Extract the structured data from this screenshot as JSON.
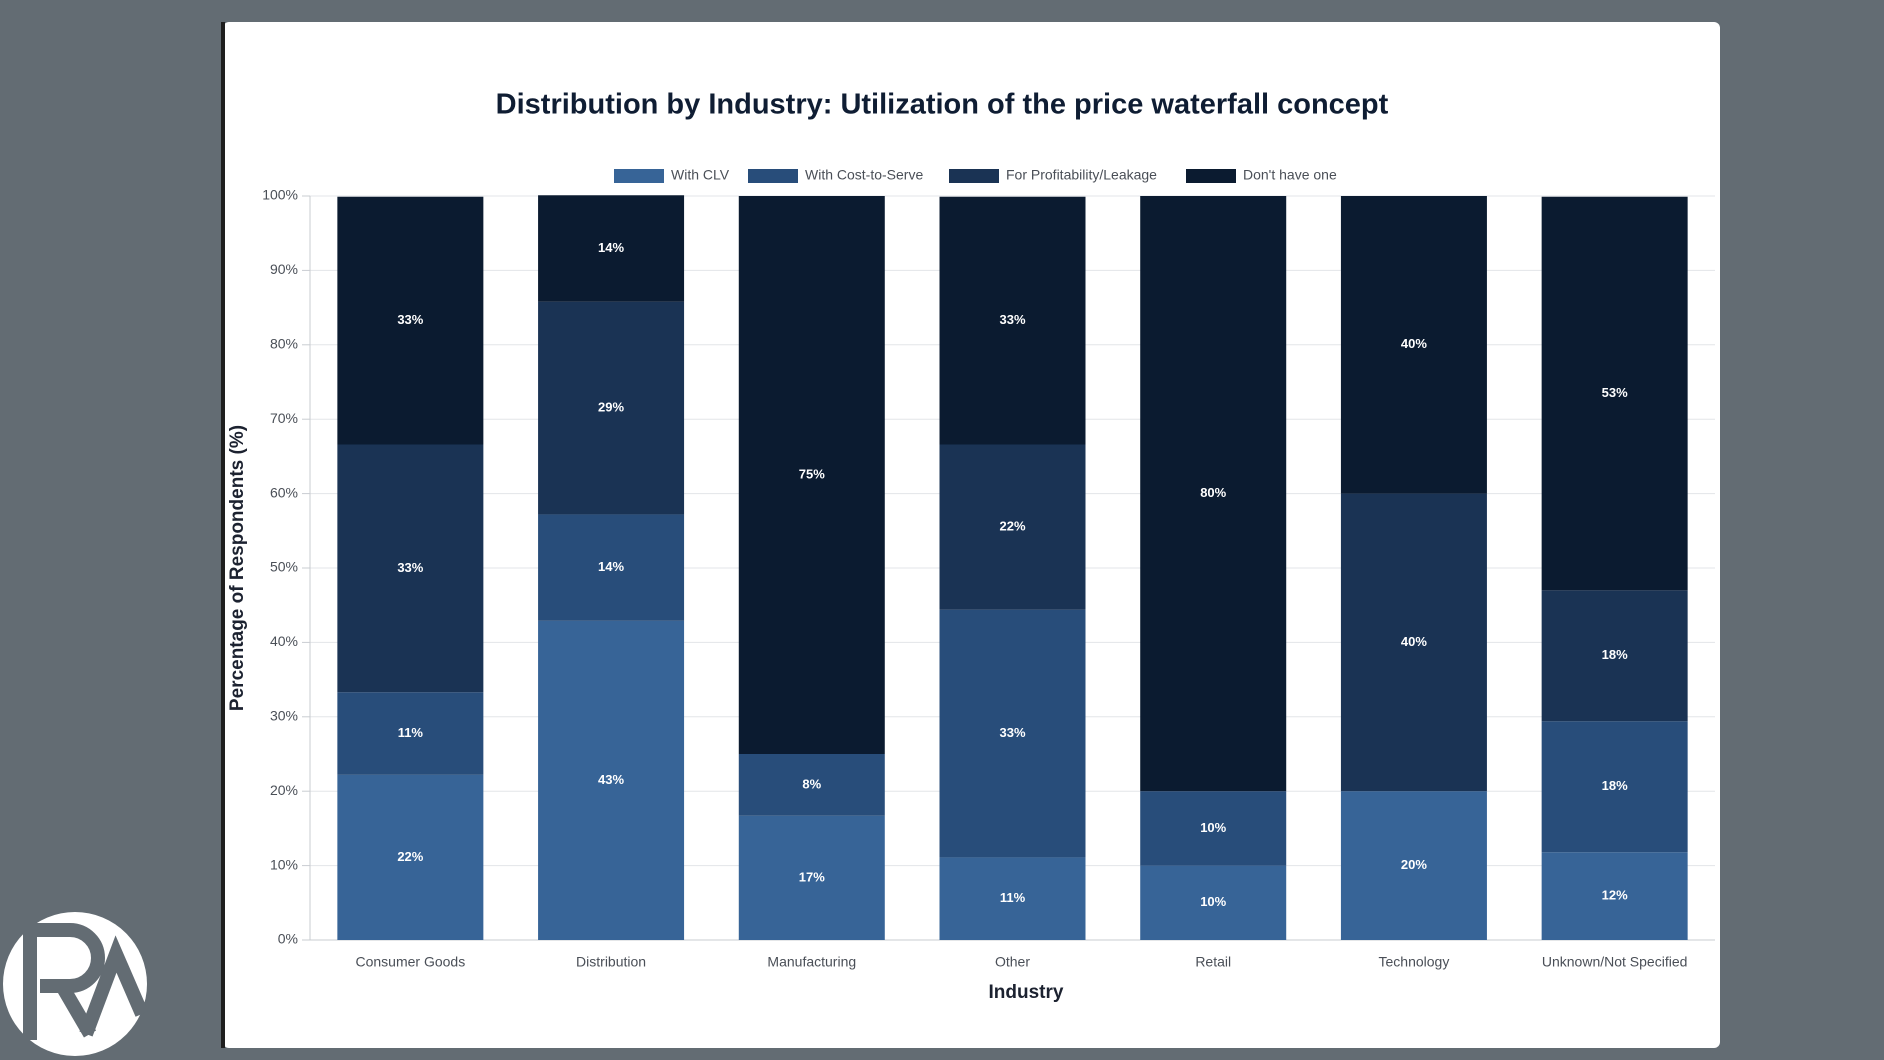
{
  "chart_data": {
    "type": "stacked_bar",
    "title": "Distribution by Industry: Utilization of the price waterfall concept",
    "x_label": "Industry",
    "y_label": "Percentage of Respondents (%)",
    "categories": [
      "Consumer Goods",
      "Distribution",
      "Manufacturing",
      "Other",
      "Retail",
      "Technology",
      "Unknown/Not Specified"
    ],
    "series": [
      {
        "name": "With CLV",
        "color": "#376497",
        "values": [
          22.2,
          42.9,
          16.7,
          11.1,
          10,
          20,
          11.8
        ],
        "value_labels": [
          "22%",
          "43%",
          "17%",
          "11%",
          "10%",
          "20%",
          "12%"
        ]
      },
      {
        "name": "With Cost-to-Serve",
        "color": "#284d7a",
        "values": [
          11.1,
          14.3,
          8.3,
          33.3,
          10,
          0,
          17.6
        ],
        "value_labels": [
          "11%",
          "14%",
          "8%",
          "33%",
          "10%",
          null,
          "18%"
        ]
      },
      {
        "name": "For Profitability/Leakage",
        "color": "#1a3354",
        "values": [
          33.3,
          28.6,
          0,
          22.2,
          0,
          40,
          17.6
        ],
        "value_labels": [
          "33%",
          "29%",
          null,
          "22%",
          null,
          "40%",
          "18%"
        ]
      },
      {
        "name": "Don't have one",
        "color": "#0b1b30",
        "values": [
          33.3,
          14.3,
          75,
          33.3,
          80,
          40,
          52.9
        ],
        "value_labels": [
          "33%",
          "14%",
          "75%",
          "33%",
          "80%",
          "40%",
          "53%"
        ]
      }
    ],
    "ylim": [
      0,
      100
    ],
    "yticks": [
      {
        "value": 0,
        "label": "0%"
      },
      {
        "value": 10,
        "label": "10%"
      },
      {
        "value": 20,
        "label": "20%"
      },
      {
        "value": 30,
        "label": "30%"
      },
      {
        "value": 40,
        "label": "40%"
      },
      {
        "value": 50,
        "label": "50%"
      },
      {
        "value": 60,
        "label": "60%"
      },
      {
        "value": 70,
        "label": "70%"
      },
      {
        "value": 80,
        "label": "80%"
      },
      {
        "value": 90,
        "label": "90%"
      },
      {
        "value": 100,
        "label": "100%"
      }
    ],
    "grid": true,
    "legend": "top"
  }
}
